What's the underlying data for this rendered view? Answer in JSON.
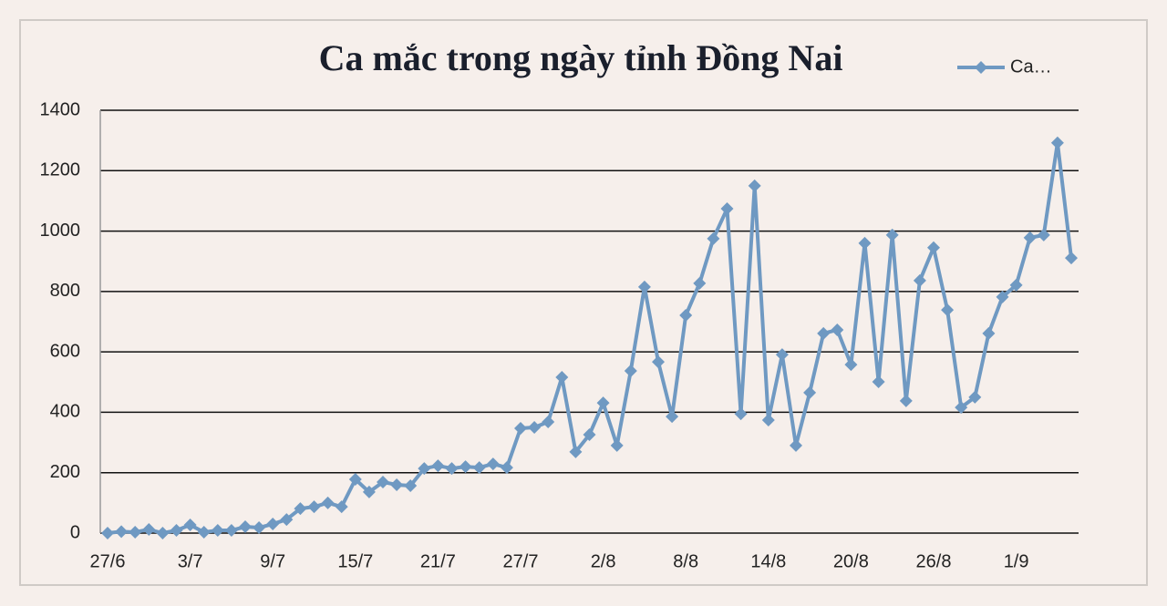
{
  "chart_data": {
    "type": "line",
    "title": "Ca mắc trong ngày tỉnh Đồng Nai",
    "categories": [
      "27/6",
      null,
      null,
      null,
      null,
      null,
      "3/7",
      null,
      null,
      null,
      null,
      null,
      "9/7",
      null,
      null,
      null,
      null,
      null,
      "15/7",
      null,
      null,
      null,
      null,
      null,
      "21/7",
      null,
      null,
      null,
      null,
      null,
      "27/7",
      null,
      null,
      null,
      null,
      null,
      "2/8",
      null,
      null,
      null,
      null,
      null,
      "8/8",
      null,
      null,
      null,
      null,
      null,
      "14/8",
      null,
      null,
      null,
      null,
      null,
      "20/8",
      null,
      null,
      null,
      null,
      null,
      "26/8",
      null,
      null,
      null,
      null,
      null,
      "1/9",
      null,
      null,
      null,
      null
    ],
    "series": [
      {
        "name": "Ca…",
        "color": "#6f99c2",
        "values": [
          0,
          5,
          3,
          12,
          0,
          9,
          27,
          3,
          9,
          9,
          21,
          18,
          30,
          45,
          81,
          87,
          100,
          87,
          178,
          136,
          169,
          160,
          157,
          214,
          223,
          214,
          220,
          217,
          229,
          217,
          347,
          350,
          368,
          516,
          269,
          326,
          431,
          290,
          537,
          815,
          567,
          386,
          721,
          827,
          975,
          1074,
          395,
          1150,
          374,
          591,
          290,
          465,
          661,
          673,
          558,
          960,
          501,
          987,
          438,
          836,
          945,
          739,
          416,
          450,
          661,
          782,
          821,
          978,
          987,
          1292,
          911
        ]
      }
    ],
    "ylim": [
      0,
      1400
    ],
    "yticks": [
      0,
      200,
      400,
      600,
      800,
      1000,
      1200,
      1400
    ],
    "grid": true,
    "legend": "top-right"
  }
}
